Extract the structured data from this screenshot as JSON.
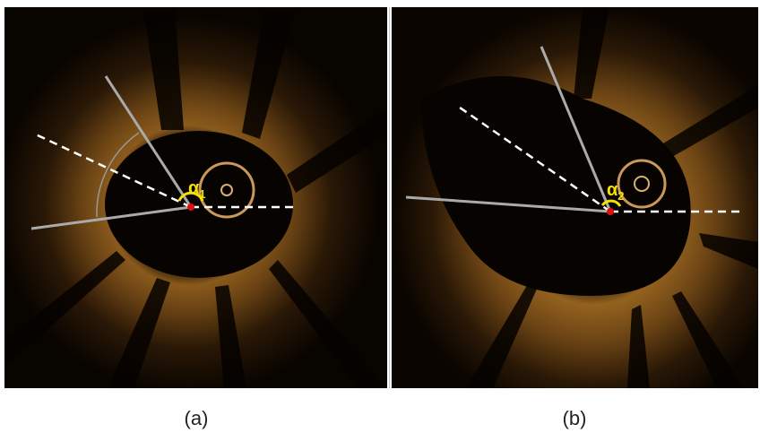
{
  "panels": [
    {
      "angle_symbol": "α",
      "angle_subscript": "1",
      "caption": "(a)"
    },
    {
      "angle_symbol": "α",
      "angle_subscript": "2",
      "caption": "(b)"
    }
  ]
}
